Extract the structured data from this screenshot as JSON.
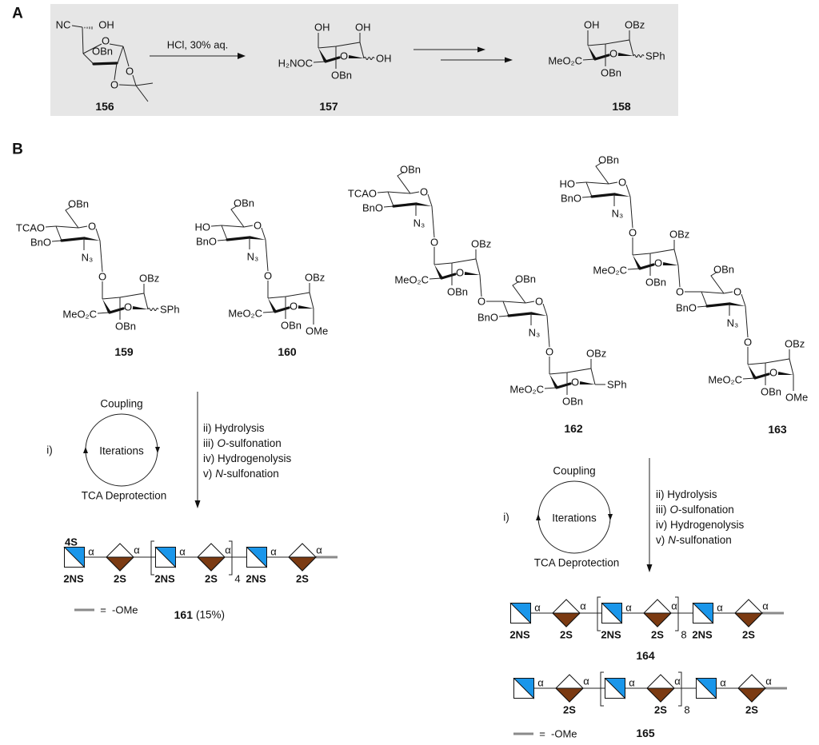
{
  "panels": {
    "a_label": "A",
    "b_label": "B"
  },
  "colors": {
    "glcn": "#1a96ea",
    "idoa": "#7b3a12",
    "aglycone_line": "#8a8a8a",
    "panel_a_bg": "#e6e6e6"
  },
  "scheme_a": {
    "c156": {
      "id": "156",
      "nc": "NC",
      "oh": "OH",
      "ring_o": "O",
      "obn": "OBn",
      "o_a": "O",
      "o_b": "O"
    },
    "reagent": "HCl, 30% aq.",
    "c157": {
      "id": "157",
      "ido": {
        "o4": "OH",
        "o2": "OH",
        "co2me": "H₂NOC",
        "o3": "OBn",
        "ring_o": "O",
        "anomeric": "OH",
        "wavy": true
      }
    },
    "c158": {
      "id": "158",
      "ido": {
        "o4": "OH",
        "o2": "OBz",
        "co2me": "MeO₂C",
        "o3": "OBn",
        "ring_o": "O",
        "anomeric": "SPh",
        "wavy": true
      }
    }
  },
  "compounds": {
    "c159": {
      "id": "159",
      "glc": [
        {
          "o4": "TCAO",
          "o3": "BnO",
          "o6": "OBn",
          "n2": "N₃",
          "ring_o": "O",
          "link_o": "O"
        }
      ],
      "ido": [
        {
          "o2": "OBz",
          "co2me": "MeO₂C",
          "o3": "OBn",
          "ring_o": "O",
          "anomeric": "SPh",
          "wavy": true
        }
      ]
    },
    "c160": {
      "id": "160",
      "glc": [
        {
          "o4": "HO",
          "o3": "BnO",
          "o6": "OBn",
          "n2": "N₃",
          "ring_o": "O",
          "link_o": "O"
        }
      ],
      "ido": [
        {
          "o2": "OBz",
          "co2me": "MeO₂C",
          "o3": "OBn",
          "ring_o": "O",
          "anomeric": "OMe"
        }
      ]
    },
    "c162": {
      "id": "162",
      "glc": [
        {
          "o4": "TCAO",
          "o3": "BnO",
          "o6": "OBn",
          "n2": "N₃",
          "ring_o": "O",
          "link_o": "O"
        },
        {
          "o3": "BnO",
          "o6": "OBn",
          "n2": "N₃",
          "ring_o": "O",
          "link_o": "O"
        }
      ],
      "ido": [
        {
          "o2": "OBz",
          "co2me": "MeO₂C",
          "o3": "OBn",
          "ring_o": "O",
          "link_out": "O"
        },
        {
          "o2": "OBz",
          "co2me": "MeO₂C",
          "o3": "OBn",
          "ring_o": "O",
          "anomeric": "SPh"
        }
      ]
    },
    "c163": {
      "id": "163",
      "glc": [
        {
          "o4": "HO",
          "o3": "BnO",
          "o6": "OBn",
          "n2": "N₃",
          "ring_o": "O",
          "link_o": "O"
        },
        {
          "o3": "BnO",
          "o6": "OBn",
          "n2": "N₃",
          "ring_o": "O",
          "link_o": "O"
        }
      ],
      "ido": [
        {
          "o2": "OBz",
          "co2me": "MeO₂C",
          "o3": "OBn",
          "ring_o": "O",
          "link_out": "O"
        },
        {
          "o2": "OBz",
          "co2me": "MeO₂C",
          "o3": "OBn",
          "ring_o": "O",
          "anomeric": "OMe"
        }
      ]
    }
  },
  "syntheses": [
    {
      "step_i": "i)",
      "cycle": {
        "top": "Coupling",
        "center": "Iterations",
        "bottom": "TCA Deprotection"
      },
      "steps": [
        {
          "num": "ii)",
          "italic": "",
          "rest": " Hydrolysis"
        },
        {
          "num": "iii)",
          "italic": "O",
          "rest": "-sulfonation"
        },
        {
          "num": "iv)",
          "italic": "",
          "rest": " Hydrogenolysis"
        },
        {
          "num": "v)",
          "italic": "N",
          "rest": "-sulfonation"
        }
      ]
    },
    {
      "step_i": "i)",
      "cycle": {
        "top": "Coupling",
        "center": "Iterations",
        "bottom": "TCA Deprotection"
      },
      "steps": [
        {
          "num": "ii)",
          "italic": "",
          "rest": " Hydrolysis"
        },
        {
          "num": "iii)",
          "italic": "O",
          "rest": "-sulfonation"
        },
        {
          "num": "iv)",
          "italic": "",
          "rest": " Hydrogenolysis"
        },
        {
          "num": "v)",
          "italic": "N",
          "rest": "-sulfonation"
        }
      ]
    }
  ],
  "glycans": {
    "c161": {
      "id": "161",
      "yield": "(15%)",
      "repeat": "4",
      "legend_eq": "=",
      "legend_label": "-OMe",
      "residues": [
        {
          "type": "GlcN",
          "top": "4S",
          "bottom": "2NS",
          "linkage": "α"
        },
        {
          "type": "IdoA",
          "bottom": "2S",
          "linkage": "α"
        },
        {
          "type": "GlcN",
          "bottom": "2NS",
          "linkage": "α",
          "repeat_start": true
        },
        {
          "type": "IdoA",
          "bottom": "2S",
          "linkage": "α",
          "repeat_end": true
        },
        {
          "type": "GlcN",
          "bottom": "2NS",
          "linkage": "α"
        },
        {
          "type": "IdoA",
          "bottom": "2S",
          "linkage": "α"
        }
      ]
    },
    "c164": {
      "id": "164",
      "repeat": "8",
      "residues": [
        {
          "type": "GlcN",
          "bottom": "2NS",
          "linkage": "α"
        },
        {
          "type": "IdoA",
          "bottom": "2S",
          "linkage": "α"
        },
        {
          "type": "GlcN",
          "bottom": "2NS",
          "linkage": "α",
          "repeat_start": true
        },
        {
          "type": "IdoA",
          "bottom": "2S",
          "linkage": "α",
          "repeat_end": true
        },
        {
          "type": "GlcN",
          "bottom": "2NS",
          "linkage": "α"
        },
        {
          "type": "IdoA",
          "bottom": "2S",
          "linkage": "α"
        }
      ]
    },
    "c165": {
      "id": "165",
      "repeat": "8",
      "legend_eq": "=",
      "legend_label": "-OMe",
      "residues": [
        {
          "type": "GlcN",
          "linkage": "α"
        },
        {
          "type": "IdoA",
          "bottom": "2S",
          "linkage": "α"
        },
        {
          "type": "GlcN",
          "linkage": "α",
          "repeat_start": true
        },
        {
          "type": "IdoA",
          "bottom": "2S",
          "linkage": "α",
          "repeat_end": true
        },
        {
          "type": "GlcN",
          "linkage": "α"
        },
        {
          "type": "IdoA",
          "bottom": "2S",
          "linkage": "α"
        }
      ]
    }
  }
}
